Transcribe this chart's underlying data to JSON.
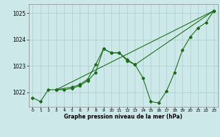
{
  "title": "Graphe pression niveau de la mer (hPa)",
  "background_color": "#cce8e8",
  "grid_color": "#aacccc",
  "line_color": "#1a6b1a",
  "xlim": [
    -0.5,
    23.5
  ],
  "ylim": [
    1021.45,
    1025.35
  ],
  "yticks": [
    1022,
    1023,
    1024,
    1025
  ],
  "xticks": [
    0,
    1,
    2,
    3,
    4,
    5,
    6,
    7,
    8,
    9,
    10,
    11,
    12,
    13,
    14,
    15,
    16,
    17,
    18,
    19,
    20,
    21,
    22,
    23
  ],
  "series1": [
    [
      0,
      1021.8
    ],
    [
      1,
      1021.65
    ],
    [
      2,
      1022.1
    ],
    [
      3,
      1022.1
    ],
    [
      4,
      1022.1
    ],
    [
      5,
      1022.15
    ],
    [
      6,
      1022.25
    ],
    [
      7,
      1022.45
    ],
    [
      8,
      1022.75
    ],
    [
      9,
      1023.65
    ],
    [
      10,
      1023.5
    ],
    [
      11,
      1023.5
    ],
    [
      12,
      1023.2
    ],
    [
      13,
      1023.05
    ],
    [
      14,
      1022.55
    ],
    [
      15,
      1021.65
    ],
    [
      16,
      1021.6
    ],
    [
      17,
      1022.05
    ],
    [
      18,
      1022.75
    ],
    [
      19,
      1023.6
    ],
    [
      20,
      1024.1
    ],
    [
      21,
      1024.45
    ],
    [
      22,
      1024.65
    ],
    [
      23,
      1025.1
    ]
  ],
  "series2": [
    [
      3,
      1022.1
    ],
    [
      5,
      1022.2
    ],
    [
      6,
      1022.3
    ],
    [
      7,
      1022.5
    ],
    [
      8,
      1023.05
    ],
    [
      9,
      1023.65
    ],
    [
      10,
      1023.5
    ],
    [
      11,
      1023.5
    ],
    [
      12,
      1023.25
    ],
    [
      13,
      1023.05
    ],
    [
      23,
      1025.1
    ]
  ],
  "series3": [
    [
      3,
      1022.1
    ],
    [
      23,
      1025.1
    ]
  ]
}
